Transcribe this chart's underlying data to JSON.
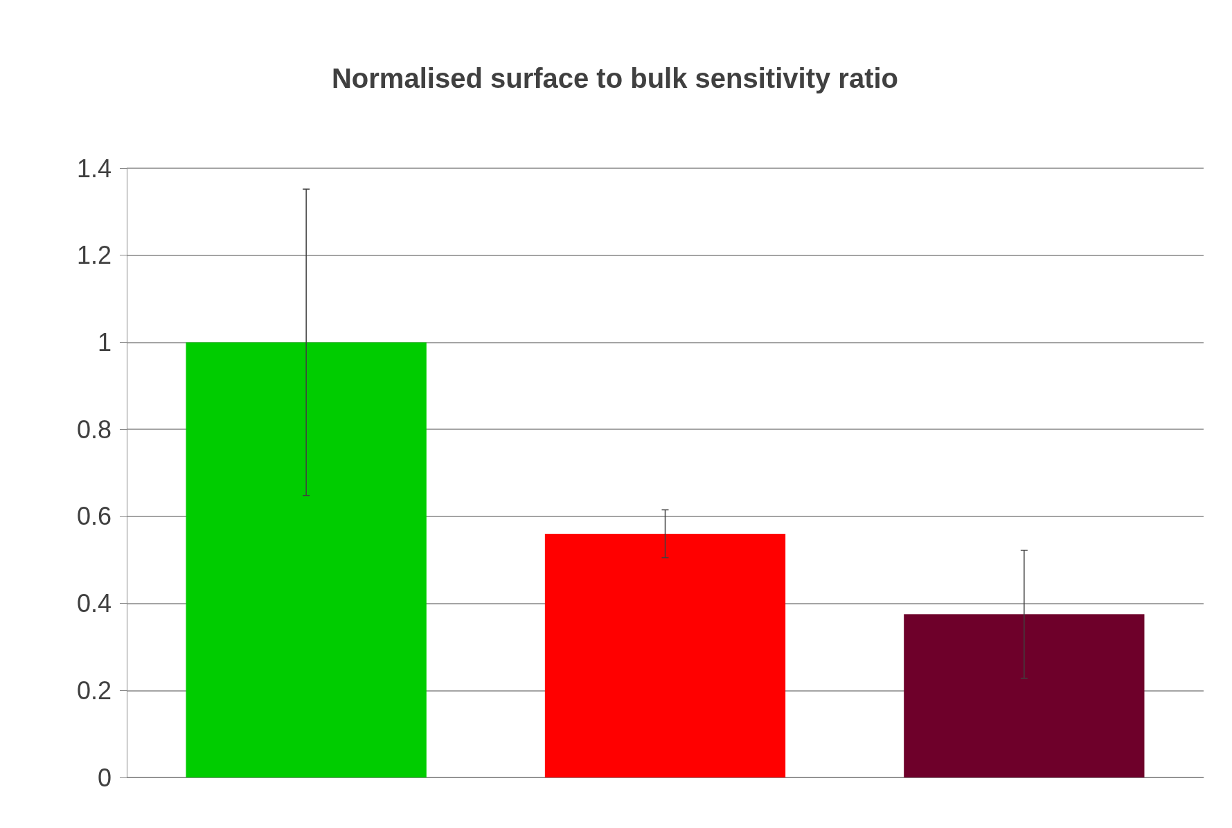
{
  "chart_data": {
    "type": "bar",
    "title": "Normalised surface to bulk sensitivity ratio",
    "categories": [
      null,
      null,
      null
    ],
    "values": [
      1.0,
      0.56,
      0.375
    ],
    "colors": [
      "#00cc00",
      "#ff0000",
      "#6e002a"
    ],
    "errors": [
      0.352,
      0.055,
      0.147
    ],
    "ylim": [
      0,
      1.4
    ],
    "yticks": [
      0,
      0.2,
      0.4,
      0.6,
      0.8,
      1,
      1.2,
      1.4
    ],
    "grid": "y"
  }
}
